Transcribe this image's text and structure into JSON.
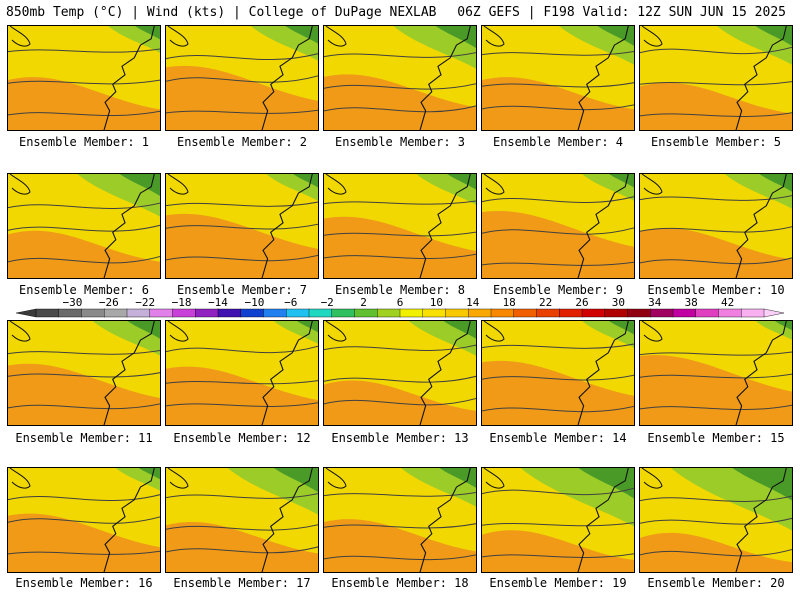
{
  "header": {
    "left": "850mb Temp (°C) | Wind (kts) | College of DuPage NEXLAB",
    "right": "06Z GEFS | F198 Valid: 12Z SUN JUN 15 2025"
  },
  "members": [
    {
      "label": "Ensemble Member: 1",
      "green": 0.35,
      "warm": 0.4
    },
    {
      "label": "Ensemble Member: 2",
      "green": 0.45,
      "warm": 0.6
    },
    {
      "label": "Ensemble Member: 3",
      "green": 0.55,
      "warm": 0.45
    },
    {
      "label": "Ensemble Member: 4",
      "green": 0.5,
      "warm": 0.4
    },
    {
      "label": "Ensemble Member: 5",
      "green": 0.5,
      "warm": 0.3
    },
    {
      "label": "Ensemble Member: 6",
      "green": 0.55,
      "warm": 0.3
    },
    {
      "label": "Ensemble Member: 7",
      "green": 0.35,
      "warm": 0.6
    },
    {
      "label": "Ensemble Member: 8",
      "green": 0.4,
      "warm": 0.55
    },
    {
      "label": "Ensemble Member: 9",
      "green": 0.35,
      "warm": 0.65
    },
    {
      "label": "Ensemble Member: 10",
      "green": 0.45,
      "warm": 0.35
    },
    {
      "label": "Ensemble Member: 11",
      "green": 0.45,
      "warm": 0.55
    },
    {
      "label": "Ensemble Member: 12",
      "green": 0.3,
      "warm": 0.5
    },
    {
      "label": "Ensemble Member: 13",
      "green": 0.45,
      "warm": 0.25
    },
    {
      "label": "Ensemble Member: 14",
      "green": 0.35,
      "warm": 0.6
    },
    {
      "label": "Ensemble Member: 15",
      "green": 0.25,
      "warm": 0.7
    },
    {
      "label": "Ensemble Member: 16",
      "green": 0.3,
      "warm": 0.5
    },
    {
      "label": "Ensemble Member: 17",
      "green": 0.6,
      "warm": 0.35
    },
    {
      "label": "Ensemble Member: 18",
      "green": 0.5,
      "warm": 0.4
    },
    {
      "label": "Ensemble Member: 19",
      "green": 0.75,
      "warm": 0.2
    },
    {
      "label": "Ensemble Member: 20",
      "green": 0.8,
      "warm": 0.15
    }
  ],
  "colorbar": {
    "ticks": [
      "-30",
      "-26",
      "-22",
      "-18",
      "-14",
      "-10",
      "-6",
      "-2",
      "2",
      "6",
      "10",
      "14",
      "18",
      "22",
      "26",
      "30",
      "34",
      "38",
      "42"
    ],
    "colors": [
      "#4a4a4a",
      "#6a6a6a",
      "#8a8a8a",
      "#a8a8a8",
      "#c4b0d8",
      "#e080e8",
      "#c840d8",
      "#9020c0",
      "#4010b0",
      "#1040d0",
      "#2080f0",
      "#20c0f0",
      "#20d8c0",
      "#30c060",
      "#60c030",
      "#a0d020",
      "#f0f000",
      "#f8e000",
      "#f8c800",
      "#f8a800",
      "#f88800",
      "#f06000",
      "#e84000",
      "#e02000",
      "#d00000",
      "#b00000",
      "#900010",
      "#a00060",
      "#c000a0",
      "#e040c0",
      "#f080e0",
      "#f8b0f0"
    ],
    "min": -34,
    "max": 46,
    "step": 2.5
  },
  "style": {
    "yellow": "#f0d800",
    "orange": "#f09a18",
    "green": "#4a9a28",
    "contour": "#404040"
  }
}
